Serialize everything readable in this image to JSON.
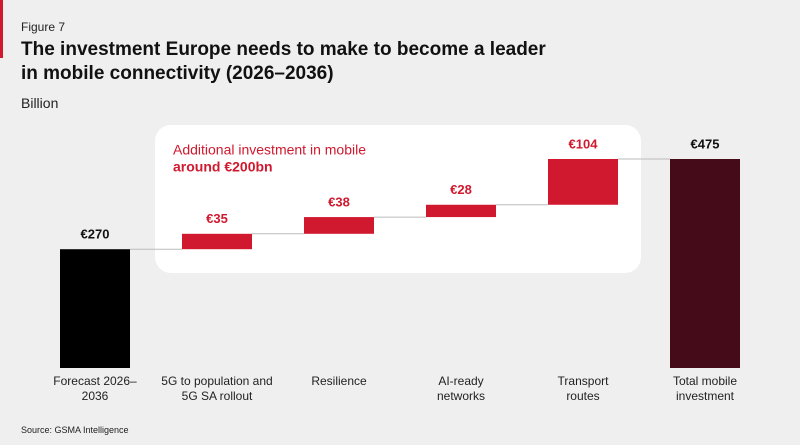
{
  "chart_data": {
    "type": "waterfall",
    "figure_label": "Figure 7",
    "title": "The investment Europe needs to make to become a leader in mobile connectivity (2026–2036)",
    "subtitle": "Billion",
    "annotation": [
      "Additional investment in mobile",
      "around €200bn"
    ],
    "categories": [
      "Forecast 2026–2036",
      "5G to population and 5G SA rollout",
      "Resilience",
      "AI-ready networks",
      "Transport routes",
      "Total mobile investment"
    ],
    "values": [
      270,
      35,
      38,
      28,
      104,
      475
    ],
    "value_labels": [
      "€270",
      "€35",
      "€38",
      "€28",
      "€104",
      "€475"
    ],
    "measure": [
      "absolute",
      "relative",
      "relative",
      "relative",
      "relative",
      "total"
    ],
    "colors": [
      "#000000",
      "#d0192e",
      "#d0192e",
      "#d0192e",
      "#d0192e",
      "#450b19"
    ],
    "source": "Source: GSMA Intelligence"
  }
}
